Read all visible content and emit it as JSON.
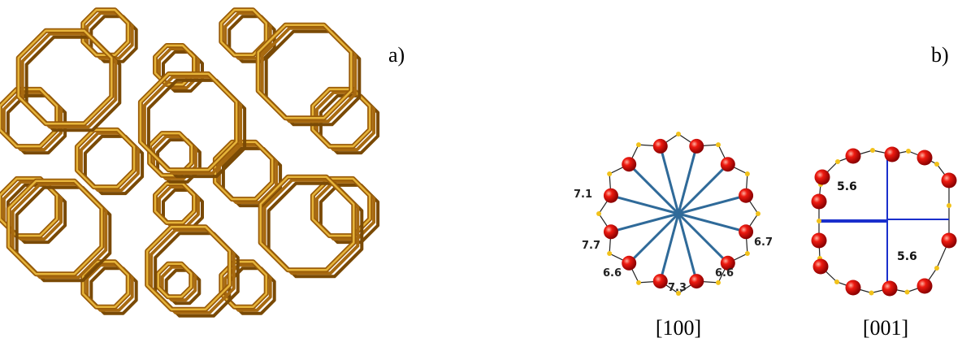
{
  "labels": {
    "a": "a)",
    "b": "b)"
  },
  "views": [
    {
      "direction": "[100]",
      "dimensions": [
        "7.1",
        "7.7",
        "6.6",
        "7.3",
        "6.6",
        "6.7"
      ]
    },
    {
      "direction": "[001]",
      "dimensions": [
        "5.6",
        "5.6"
      ]
    }
  ]
}
